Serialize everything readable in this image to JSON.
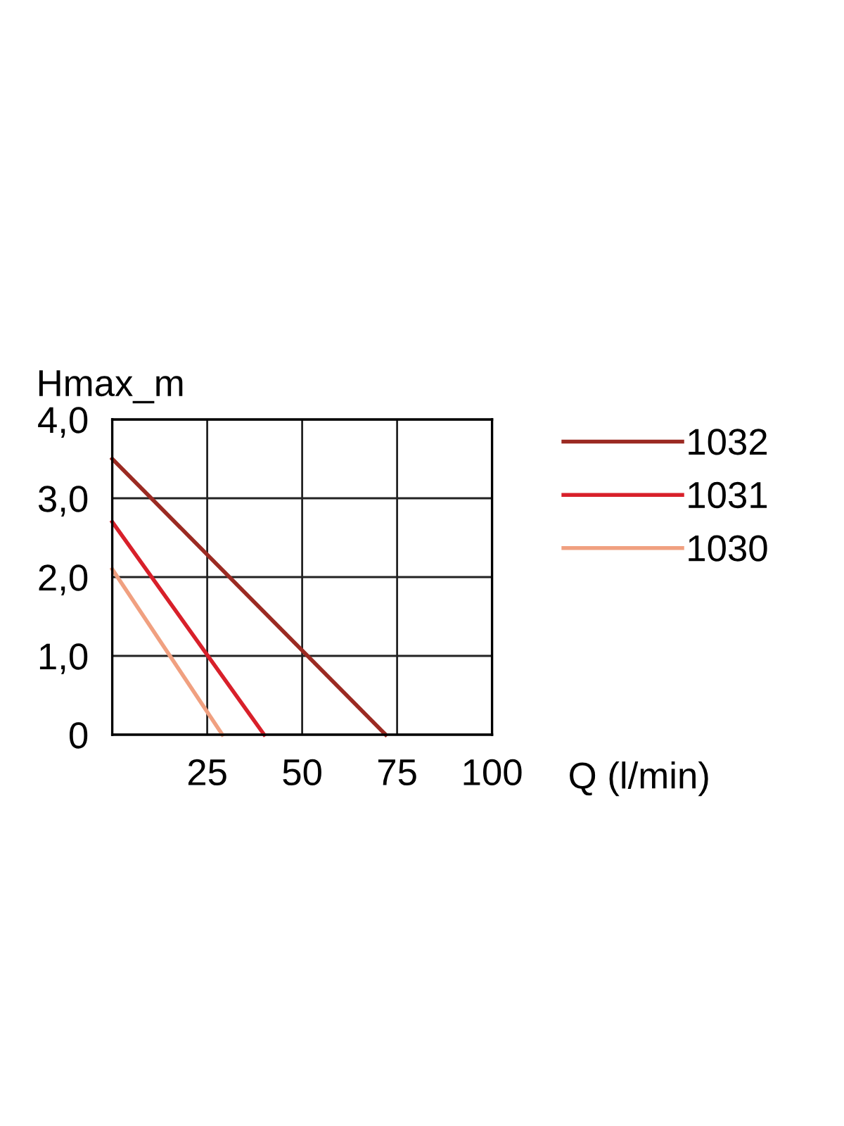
{
  "chart_data": {
    "type": "line",
    "xlabel": "Q (l/min)",
    "ylabel": "Hmax_m",
    "xlim": [
      0,
      100
    ],
    "xticks": [
      {
        "value": 0,
        "label": null
      },
      25,
      50,
      75,
      100
    ],
    "ylim": [
      0,
      4
    ],
    "yticks": [
      0,
      {
        "value": 1,
        "label": "1,0"
      },
      {
        "value": 2,
        "label": "2,0"
      },
      {
        "value": 3,
        "label": "3,0"
      },
      {
        "value": 4,
        "label": "4,0"
      }
    ],
    "grid": true,
    "legend": "right",
    "marker": "none",
    "line_style": "solid",
    "series": [
      {
        "name": "1032",
        "color": "#9b2a22",
        "x": [
          0,
          72
        ],
        "values": [
          3.5,
          0
        ]
      },
      {
        "name": "1031",
        "color": "#d8202a",
        "x": [
          0,
          40
        ],
        "values": [
          2.7,
          0
        ]
      },
      {
        "name": "1030",
        "color": "#f0a080",
        "x": [
          0,
          29
        ],
        "values": [
          2.1,
          0
        ]
      }
    ]
  }
}
